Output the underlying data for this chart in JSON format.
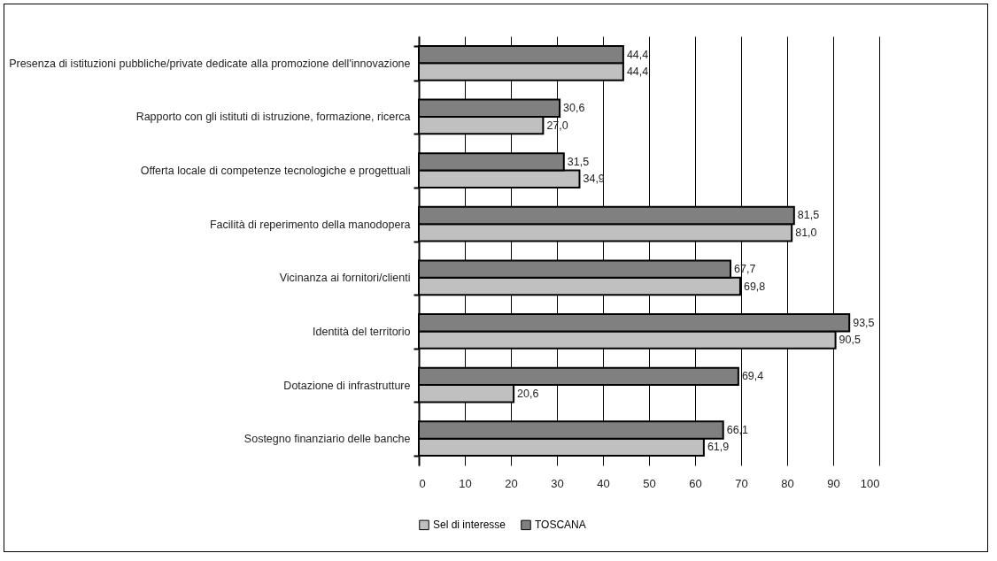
{
  "chart_data": {
    "type": "bar",
    "orientation": "horizontal",
    "categories": [
      "Presenza di istituzioni pubbliche/private dedicate alla promozione dell'innovazione",
      "Rapporto con gli istituti di istruzione, formazione, ricerca",
      "Offerta locale di competenze tecnologiche e progettuali",
      "Facilità di reperimento della manodopera",
      "Vicinanza ai fornitori/clienti",
      "Identità del territorio",
      "Dotazione di infrastrutture",
      "Sostegno finanziario delle banche"
    ],
    "series": [
      {
        "name": "Sel di interesse",
        "color": "#c0c0c0",
        "values": [
          44.4,
          27.0,
          34.9,
          81.0,
          69.8,
          90.5,
          20.6,
          61.9
        ],
        "value_labels": [
          "44,4",
          "27,0",
          "34,9",
          "81,0",
          "69,8",
          "90,5",
          "20,6",
          "61,9"
        ]
      },
      {
        "name": "TOSCANA",
        "color": "#808080",
        "values": [
          44.4,
          30.6,
          31.5,
          81.5,
          67.7,
          93.5,
          69.4,
          66.1
        ],
        "value_labels": [
          "44,4",
          "30,6",
          "31,5",
          "81,5",
          "67,7",
          "93,5",
          "69,4",
          "66,1"
        ]
      }
    ],
    "xlim": [
      0,
      100
    ],
    "xticks": [
      0,
      10,
      20,
      30,
      40,
      50,
      60,
      70,
      80,
      90,
      100
    ],
    "grid": "x",
    "legend": "bottom"
  }
}
